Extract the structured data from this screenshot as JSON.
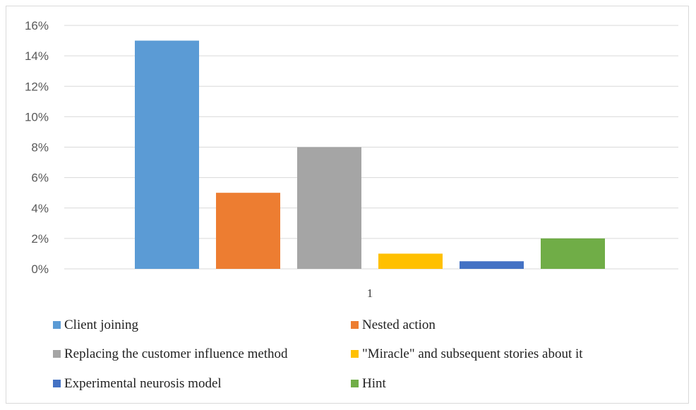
{
  "chart_data": {
    "type": "bar",
    "title": "",
    "xlabel": "",
    "ylabel": "",
    "categories": [
      "1"
    ],
    "ylim": [
      0,
      16
    ],
    "yticks": [
      0,
      2,
      4,
      6,
      8,
      10,
      12,
      14,
      16
    ],
    "ytick_suffix": "%",
    "grid": true,
    "legend_position": "bottom",
    "series": [
      {
        "name": "Client joining",
        "values": [
          15
        ],
        "color": "#5b9bd5"
      },
      {
        "name": "Nested action",
        "values": [
          5
        ],
        "color": "#ed7d31"
      },
      {
        "name": "Replacing the customer influence method",
        "values": [
          8
        ],
        "color": "#a5a5a5"
      },
      {
        "name": "\"Miracle\" and subsequent stories about it",
        "values": [
          1
        ],
        "color": "#ffc000"
      },
      {
        "name": "Experimental neurosis model",
        "values": [
          0.5
        ],
        "color": "#4472c4"
      },
      {
        "name": "Hint",
        "values": [
          2
        ],
        "color": "#70ad47"
      }
    ]
  }
}
